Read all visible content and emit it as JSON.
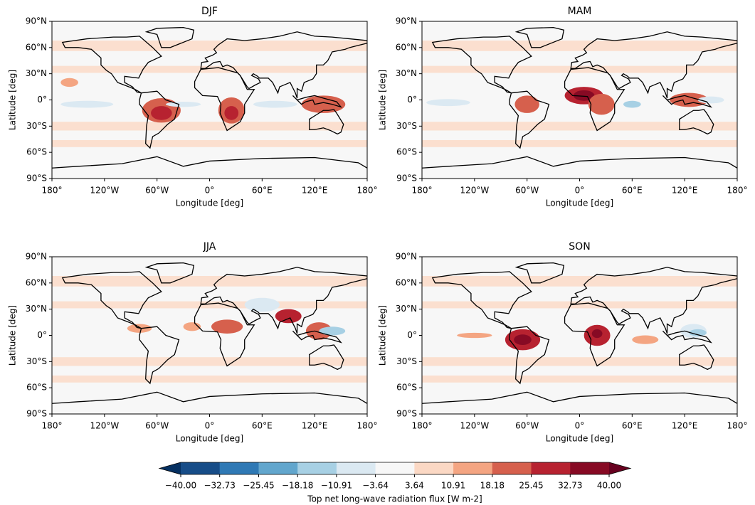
{
  "panels": [
    {
      "title": "DJF"
    },
    {
      "title": "MAM"
    },
    {
      "title": "JJA"
    },
    {
      "title": "SON"
    }
  ],
  "map": {
    "xlabel": "Longitude [deg]",
    "ylabel": "Latitude [deg]",
    "xlim": [
      -180,
      180
    ],
    "ylim": [
      -90,
      90
    ],
    "xticks": [
      {
        "value": -180,
        "label": "180°"
      },
      {
        "value": -120,
        "label": "120°W"
      },
      {
        "value": -60,
        "label": "60°W"
      },
      {
        "value": 0,
        "label": "0°"
      },
      {
        "value": 60,
        "label": "60°E"
      },
      {
        "value": 120,
        "label": "120°E"
      },
      {
        "value": 180,
        "label": "180°"
      }
    ],
    "yticks": [
      {
        "value": 90,
        "label": "90°N"
      },
      {
        "value": 60,
        "label": "60°N"
      },
      {
        "value": 30,
        "label": "30°N"
      },
      {
        "value": 0,
        "label": "0°"
      },
      {
        "value": -30,
        "label": "30°S"
      },
      {
        "value": -60,
        "label": "60°S"
      },
      {
        "value": -90,
        "label": "90°S"
      }
    ]
  },
  "colorbar": {
    "label": "Top net long-wave radiation flux [W m-2]",
    "ticks": [
      {
        "value": -40,
        "label": "−40.00"
      },
      {
        "value": -32.73,
        "label": "−32.73"
      },
      {
        "value": -25.45,
        "label": "−25.45"
      },
      {
        "value": -18.18,
        "label": "−18.18"
      },
      {
        "value": -10.91,
        "label": "−10.91"
      },
      {
        "value": -3.64,
        "label": "−3.64"
      },
      {
        "value": 3.64,
        "label": "3.64"
      },
      {
        "value": 10.91,
        "label": "10.91"
      },
      {
        "value": 18.18,
        "label": "18.18"
      },
      {
        "value": 25.45,
        "label": "25.45"
      },
      {
        "value": 32.73,
        "label": "32.73"
      },
      {
        "value": 40,
        "label": "40.00"
      }
    ],
    "colors": [
      "#174d88",
      "#2f79b5",
      "#62a6cd",
      "#a7d0e4",
      "#dbe9f2",
      "#f7f7f7",
      "#fbd8c4",
      "#f4a582",
      "#d6604d",
      "#b72230",
      "#870a24"
    ],
    "extend_colors": [
      "#053061",
      "#67001f"
    ]
  }
}
